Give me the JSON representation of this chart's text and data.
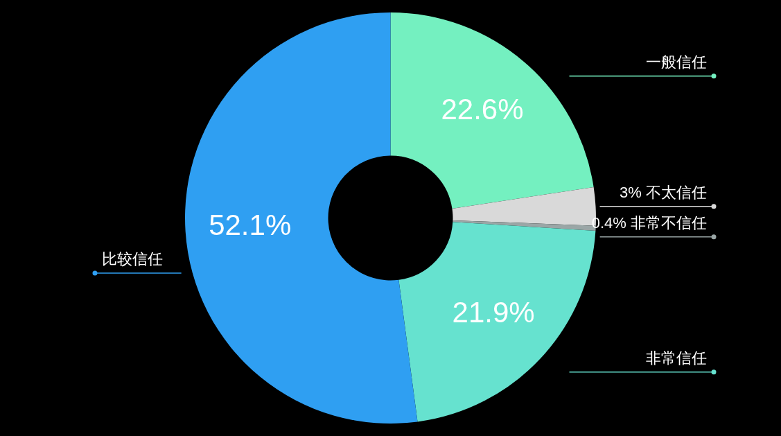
{
  "chart_data": {
    "type": "donut",
    "categories": [
      "一般信任",
      "不太信任",
      "非常不信任",
      "非常信任",
      "比较信任"
    ],
    "values": [
      22.6,
      3,
      0.4,
      21.9,
      52.1
    ],
    "value_labels": [
      "22.6%",
      "3%",
      "0.4%",
      "21.9%",
      "52.1%"
    ],
    "colors": [
      "#74f0c0",
      "#d9d9d9",
      "#9aa6a6",
      "#66e2cf",
      "#2f9ff2"
    ],
    "legend": false
  }
}
